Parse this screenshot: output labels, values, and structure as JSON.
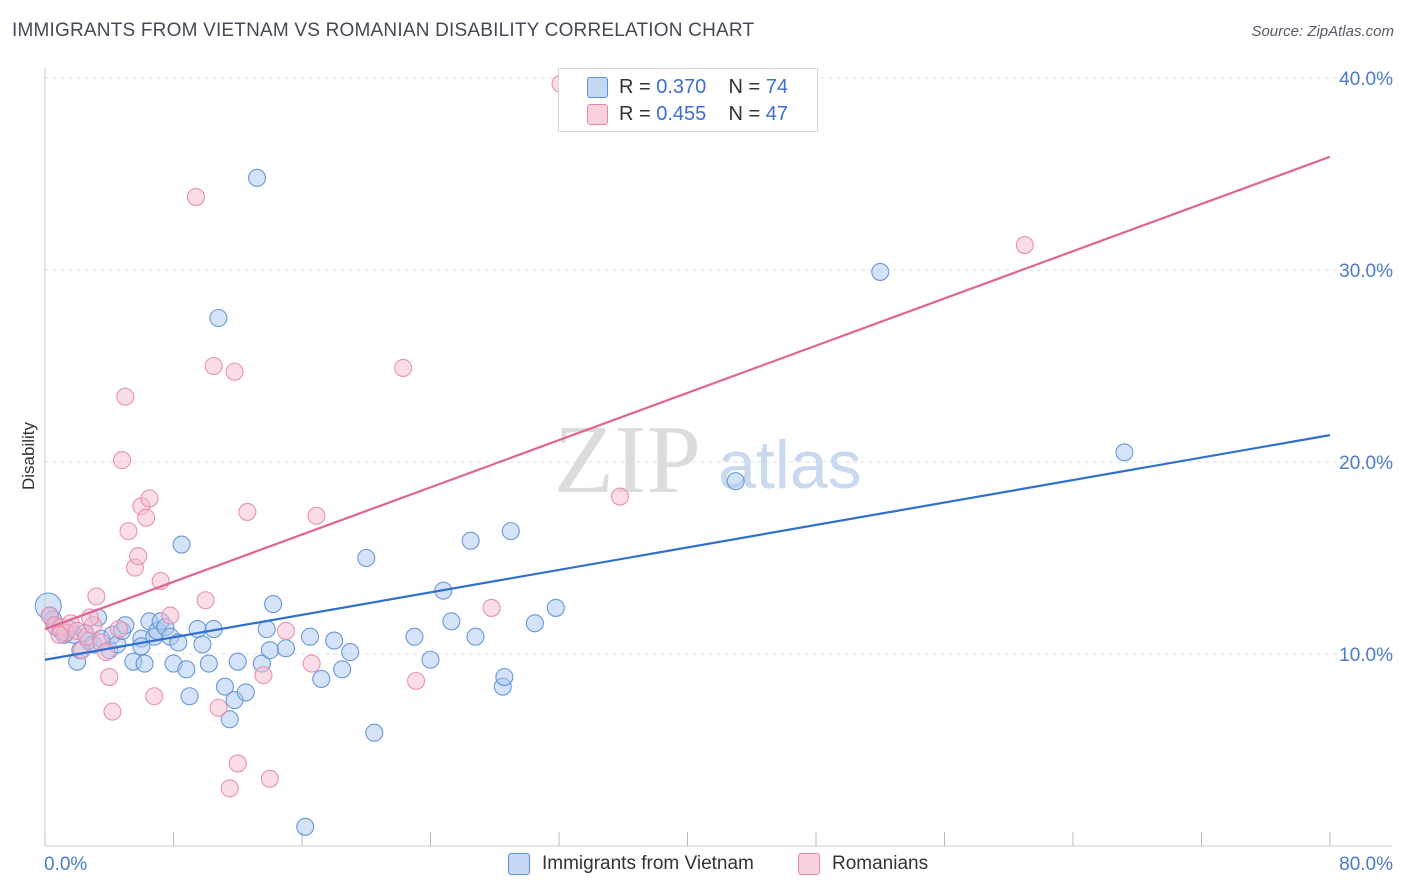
{
  "header": {
    "title": "IMMIGRANTS FROM VIETNAM VS ROMANIAN DISABILITY CORRELATION CHART",
    "source": "Source: ZipAtlas.com"
  },
  "watermark": {
    "zip": "ZIP",
    "atlas": "atlas"
  },
  "legend_top": {
    "series1": {
      "r_label": "R = ",
      "r_value": "0.370",
      "n_label": "N = ",
      "n_value": "74"
    },
    "series2": {
      "r_label": "R = ",
      "r_value": "0.455",
      "n_label": "N = ",
      "n_value": "47"
    }
  },
  "legend_bottom": {
    "series1": "Immigrants from Vietnam",
    "series2": "Romanians"
  },
  "colors": {
    "blue_fill": "#a9c7ef",
    "blue_stroke": "#5b8fd6",
    "blue_line": "#2f6fcf",
    "pink_fill": "#f6bcd0",
    "pink_stroke": "#e788a8",
    "pink_line": "#e0658f",
    "grid": "#dddddd",
    "tick": "#4a7cc7"
  },
  "chart_data": {
    "type": "scatter",
    "title": "IMMIGRANTS FROM VIETNAM VS ROMANIAN DISABILITY CORRELATION CHART",
    "xlabel": "",
    "ylabel": "Disability",
    "xlim": [
      0,
      80
    ],
    "ylim": [
      0,
      40
    ],
    "x_tick_labels": [
      {
        "value": 0,
        "label": "0.0%"
      },
      {
        "value": 80,
        "label": "80.0%"
      }
    ],
    "y_tick_labels": [
      {
        "value": 10,
        "label": "10.0%"
      },
      {
        "value": 20,
        "label": "20.0%"
      },
      {
        "value": 30,
        "label": "30.0%"
      },
      {
        "value": 40,
        "label": "40.0%"
      }
    ],
    "y_gridlines": [
      10,
      20,
      30,
      40
    ],
    "series": [
      {
        "name": "Immigrants from Vietnam",
        "color": "#5b8fd6",
        "r": 0.37,
        "n": 74,
        "trend": {
          "x0": 0,
          "y0": 9.7,
          "x1": 80,
          "y1": 21.4
        },
        "points": [
          [
            0.2,
            12.5
          ],
          [
            0.5,
            11.8
          ],
          [
            0.7,
            11.4
          ],
          [
            1.0,
            11.2
          ],
          [
            1.2,
            11.0
          ],
          [
            1.5,
            11.3
          ],
          [
            1.8,
            11.0
          ],
          [
            2.0,
            9.6
          ],
          [
            2.2,
            10.2
          ],
          [
            2.5,
            11.1
          ],
          [
            2.7,
            10.7
          ],
          [
            3.0,
            10.5
          ],
          [
            3.3,
            11.9
          ],
          [
            3.5,
            10.8
          ],
          [
            4.0,
            10.2
          ],
          [
            4.2,
            11.0
          ],
          [
            4.5,
            10.5
          ],
          [
            4.8,
            11.2
          ],
          [
            5.0,
            11.5
          ],
          [
            5.5,
            9.6
          ],
          [
            6.0,
            10.8
          ],
          [
            6.2,
            9.5
          ],
          [
            6.5,
            11.7
          ],
          [
            6.8,
            10.9
          ],
          [
            7.0,
            11.2
          ],
          [
            7.2,
            11.7
          ],
          [
            7.5,
            11.4
          ],
          [
            7.8,
            10.9
          ],
          [
            8.0,
            9.5
          ],
          [
            8.3,
            10.6
          ],
          [
            8.5,
            15.7
          ],
          [
            8.8,
            9.2
          ],
          [
            9.0,
            7.8
          ],
          [
            9.5,
            11.3
          ],
          [
            9.8,
            10.5
          ],
          [
            10.2,
            9.5
          ],
          [
            10.5,
            11.3
          ],
          [
            10.8,
            27.5
          ],
          [
            11.2,
            8.3
          ],
          [
            11.5,
            6.6
          ],
          [
            11.8,
            7.6
          ],
          [
            12.0,
            9.6
          ],
          [
            12.5,
            8.0
          ],
          [
            13.2,
            34.8
          ],
          [
            13.5,
            9.5
          ],
          [
            13.8,
            11.3
          ],
          [
            14.0,
            10.2
          ],
          [
            14.2,
            12.6
          ],
          [
            15.0,
            10.3
          ],
          [
            16.2,
            1.0
          ],
          [
            16.5,
            10.9
          ],
          [
            17.2,
            8.7
          ],
          [
            18.0,
            10.7
          ],
          [
            18.5,
            9.2
          ],
          [
            19.0,
            10.1
          ],
          [
            20.0,
            15.0
          ],
          [
            20.5,
            5.9
          ],
          [
            23.0,
            10.9
          ],
          [
            24.0,
            9.7
          ],
          [
            24.8,
            13.3
          ],
          [
            25.3,
            11.7
          ],
          [
            26.5,
            15.9
          ],
          [
            26.8,
            10.9
          ],
          [
            28.5,
            8.3
          ],
          [
            28.6,
            8.8
          ],
          [
            29.0,
            16.4
          ],
          [
            30.5,
            11.6
          ],
          [
            31.8,
            12.4
          ],
          [
            43.0,
            19.0
          ],
          [
            52.0,
            29.9
          ],
          [
            67.2,
            20.5
          ],
          [
            0.3,
            12.0
          ],
          [
            1.3,
            11.1
          ],
          [
            6.0,
            10.4
          ]
        ]
      },
      {
        "name": "Romanians",
        "color": "#e788a8",
        "r": 0.455,
        "n": 47,
        "trend": {
          "x0": 0,
          "y0": 11.3,
          "x1": 80,
          "y1": 35.9
        },
        "points": [
          [
            0.3,
            12.0
          ],
          [
            0.6,
            11.5
          ],
          [
            1.0,
            11.4
          ],
          [
            1.3,
            11.1
          ],
          [
            1.6,
            11.6
          ],
          [
            2.0,
            11.2
          ],
          [
            2.3,
            10.2
          ],
          [
            2.6,
            10.9
          ],
          [
            3.0,
            11.5
          ],
          [
            3.2,
            13.0
          ],
          [
            3.5,
            10.6
          ],
          [
            3.8,
            10.1
          ],
          [
            4.0,
            8.8
          ],
          [
            4.2,
            7.0
          ],
          [
            4.6,
            11.3
          ],
          [
            4.8,
            20.1
          ],
          [
            5.0,
            23.4
          ],
          [
            5.2,
            16.4
          ],
          [
            5.6,
            14.5
          ],
          [
            5.8,
            15.1
          ],
          [
            6.0,
            17.7
          ],
          [
            6.3,
            17.1
          ],
          [
            6.5,
            18.1
          ],
          [
            6.8,
            7.8
          ],
          [
            7.2,
            13.8
          ],
          [
            7.8,
            12.0
          ],
          [
            9.4,
            33.8
          ],
          [
            10.0,
            12.8
          ],
          [
            10.5,
            25.0
          ],
          [
            10.8,
            7.2
          ],
          [
            11.5,
            3.0
          ],
          [
            11.8,
            24.7
          ],
          [
            12.0,
            4.3
          ],
          [
            12.6,
            17.4
          ],
          [
            13.6,
            8.9
          ],
          [
            14.0,
            3.5
          ],
          [
            15.0,
            11.2
          ],
          [
            16.6,
            9.5
          ],
          [
            16.9,
            17.2
          ],
          [
            22.3,
            24.9
          ],
          [
            23.1,
            8.6
          ],
          [
            27.8,
            12.4
          ],
          [
            32.1,
            39.7
          ],
          [
            35.8,
            18.2
          ],
          [
            61.0,
            31.3
          ],
          [
            0.9,
            11.0
          ],
          [
            2.8,
            11.9
          ]
        ]
      }
    ]
  }
}
